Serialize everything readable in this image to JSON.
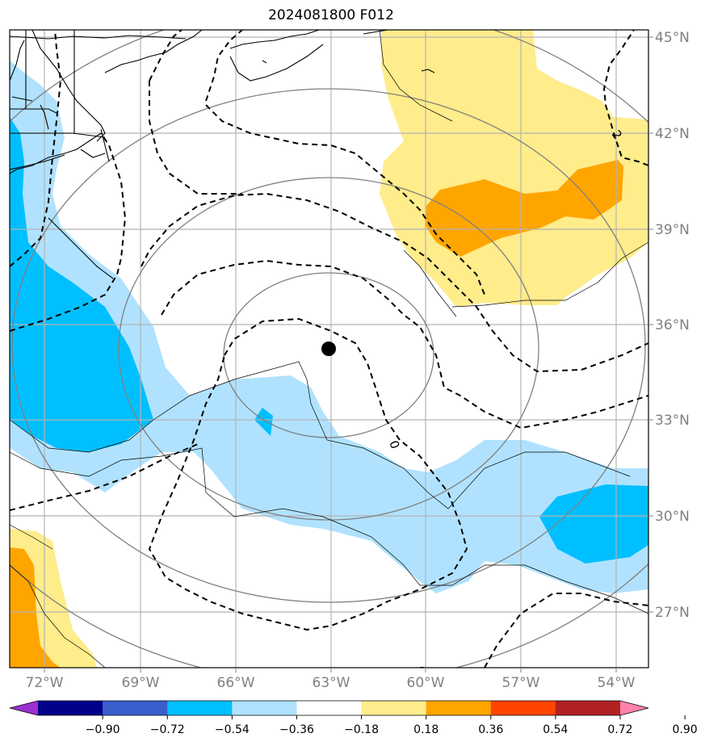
{
  "title": "2024081800 F012",
  "lon_labels": [
    "72°W",
    "69°W",
    "66°W",
    "63°W",
    "60°W",
    "57°W",
    "54°W"
  ],
  "lat_labels": [
    "45°N",
    "42°N",
    "39°N",
    "36°N",
    "33°N",
    "30°N",
    "27°N"
  ],
  "contour_labels": [
    "0",
    "2"
  ],
  "colorbar": {
    "tick_labels": [
      "−0.90",
      "−0.72",
      "−0.54",
      "−0.36",
      "−0.18",
      "0.18",
      "0.36",
      "0.54",
      "0.72",
      "0.90"
    ],
    "colors": [
      "#9b30d0",
      "#00008b",
      "#3a5fcd",
      "#00bfff",
      "#b0e2ff",
      "#ffffff",
      "#ffec8b",
      "#ffa500",
      "#ff4500",
      "#b22222",
      "#ff82ab"
    ]
  },
  "storm_center": {
    "lon": -63.0,
    "lat": 35.2,
    "marker": "black-dot"
  },
  "colors": {
    "light_blue": "#b0e2ff",
    "blue": "#00bfff",
    "light_yellow": "#ffec8b",
    "orange": "#ffa500",
    "grid": "#b3b3b3",
    "range_rings": "#808080",
    "coast": "#000000"
  }
}
